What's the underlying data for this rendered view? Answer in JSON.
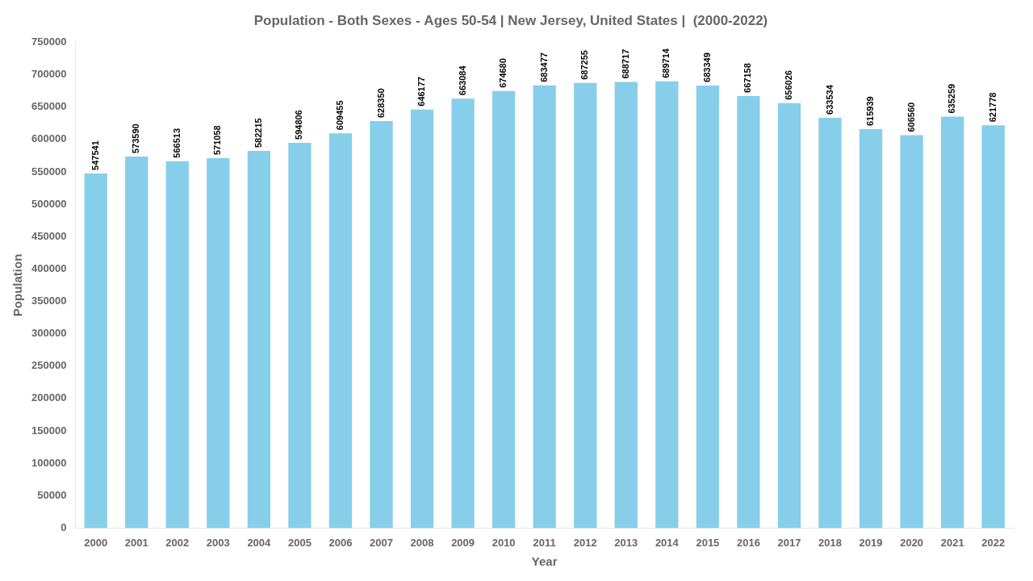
{
  "chart_data": {
    "type": "bar",
    "title": "Population - Both Sexes - Ages 50-54 | New Jersey, United States |  (2000-2022)",
    "xlabel": "Year",
    "ylabel": "Population",
    "categories": [
      "2000",
      "2001",
      "2002",
      "2003",
      "2004",
      "2005",
      "2006",
      "2007",
      "2008",
      "2009",
      "2010",
      "2011",
      "2012",
      "2013",
      "2014",
      "2015",
      "2016",
      "2017",
      "2018",
      "2019",
      "2020",
      "2021",
      "2022"
    ],
    "values": [
      547541,
      573590,
      566513,
      571058,
      582215,
      594806,
      609455,
      628350,
      646177,
      663084,
      674680,
      683477,
      687255,
      688717,
      689714,
      683349,
      667158,
      656026,
      633534,
      615939,
      606560,
      635259,
      621778
    ],
    "color": "#87ceeb",
    "ylim": [
      0,
      750000
    ],
    "yticks": [
      0,
      50000,
      100000,
      150000,
      200000,
      250000,
      300000,
      350000,
      400000,
      450000,
      500000,
      550000,
      600000,
      650000,
      700000,
      750000
    ],
    "grid": false,
    "data_labels": true
  }
}
